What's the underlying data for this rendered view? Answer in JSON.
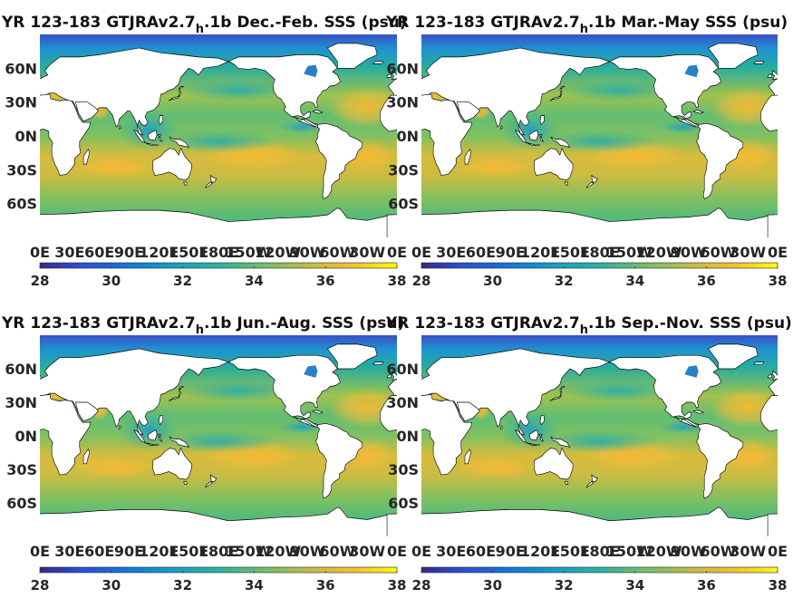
{
  "panels": [
    {
      "title_pre": "YR 123-183 GTJRAv2.7",
      "title_sub": "h",
      "title_post": ".1b Dec.-Feb. SSS (psu)"
    },
    {
      "title_pre": "YR 123-183 GTJRAv2.7",
      "title_sub": "h",
      "title_post": ".1b Mar.-May SSS (psu)"
    },
    {
      "title_pre": "YR 123-183 GTJRAv2.7",
      "title_sub": "h",
      "title_post": ".1b Jun.-Aug. SSS (psu)"
    },
    {
      "title_pre": "YR 123-183 GTJRAv2.7",
      "title_sub": "h",
      "title_post": ".1b Sep.-Nov. SSS (psu)"
    }
  ],
  "lat_ticks": [
    "60N",
    "30N",
    "0N",
    "30S",
    "60S"
  ],
  "lon_ticks": [
    "0E",
    "30E",
    "60E",
    "90E",
    "120E",
    "150E",
    "180E",
    "150W",
    "120W",
    "90W",
    "60W",
    "30W",
    "0E"
  ],
  "colorbar": {
    "ticks": [
      "28",
      "30",
      "32",
      "34",
      "36",
      "38"
    ],
    "range": [
      28,
      38
    ],
    "colormap": "parula"
  },
  "colors": {
    "low": "#352a87",
    "mid_low": "#0f89d3",
    "mid": "#2bb2a0",
    "mid_high": "#8cc35a",
    "high_mid": "#f5c02f",
    "high": "#f9fb0e",
    "land": "#ffffff"
  }
}
